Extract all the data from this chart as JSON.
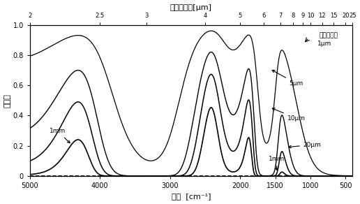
{
  "title_wavelength": "波長",
  "title_wavelength_unit": "[μm]",
  "xlabel_bottom": "波数",
  "xlabel_bottom_unit": "[cm⁻¹]",
  "ylabel": "透過率",
  "top_ticks": [
    2,
    2.5,
    3,
    4,
    5,
    6,
    7,
    8,
    9,
    10,
    12,
    15,
    20,
    25
  ],
  "bottom_ticks": [
    5000,
    4000,
    3000,
    2000,
    1500,
    1000,
    500
  ],
  "ylim": [
    0,
    1.0
  ],
  "xlim_left": 5000,
  "xlim_right": 400,
  "annotation_header": "水層の厚さ",
  "curve_labels": [
    "1μm",
    "5μm",
    "10μm",
    "20μm",
    "1mm"
  ],
  "background_color": "#ffffff"
}
